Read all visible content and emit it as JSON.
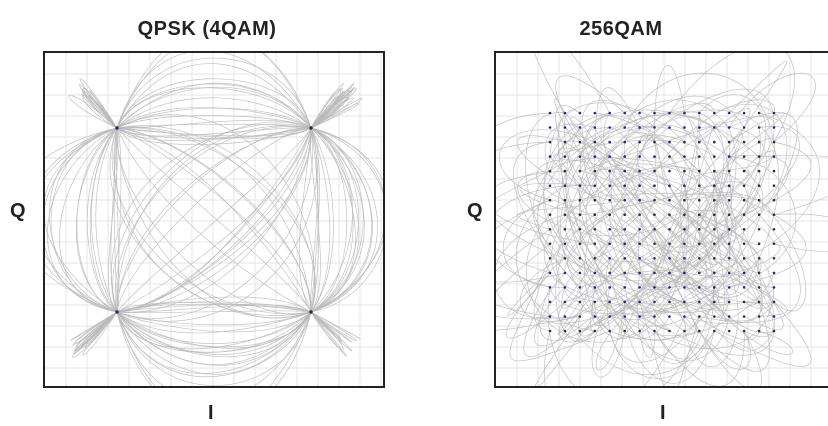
{
  "panels": [
    {
      "title": "QPSK (4QAM)",
      "xlabel": "I",
      "ylabel": "Q",
      "order": 2
    },
    {
      "title": "256QAM",
      "xlabel": "I",
      "ylabel": "Q",
      "order": 16
    }
  ],
  "colors": {
    "trajectory": "#b9b9b9",
    "symbol": "#1f2a6e",
    "grid": "#e6e6e6",
    "frame": "#222222"
  }
}
